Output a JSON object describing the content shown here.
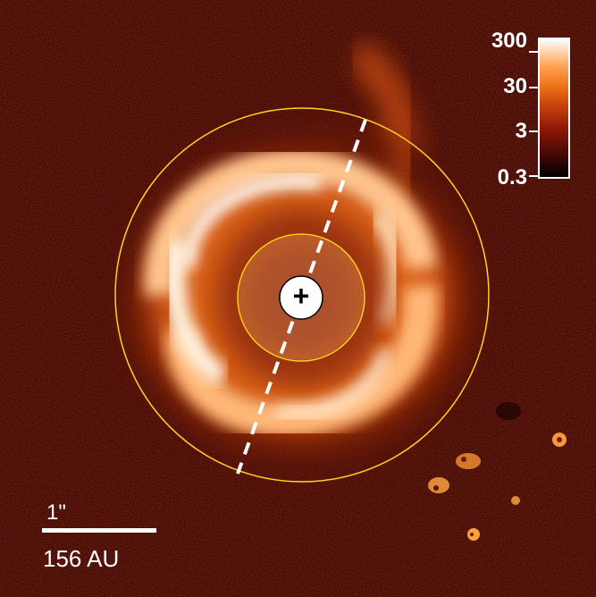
{
  "image": {
    "subject": "coronagraphic image of a circumstellar disk with spiral arms",
    "colors": {
      "background": "#3a0703",
      "disk_bright": "#fff0de",
      "disk_mid": "#f08a3a",
      "inner_region": "#b5502a",
      "circle_outline": "#ffd21e",
      "dashed_line": "#ffffff",
      "mask": "#ffffff"
    }
  },
  "colorbar": {
    "ticks": [
      "300",
      "30",
      "3",
      "0.3"
    ],
    "scale": "log"
  },
  "scalebar": {
    "angular_label": "1\"",
    "physical_label": "156 AU"
  },
  "center_marker": "+"
}
